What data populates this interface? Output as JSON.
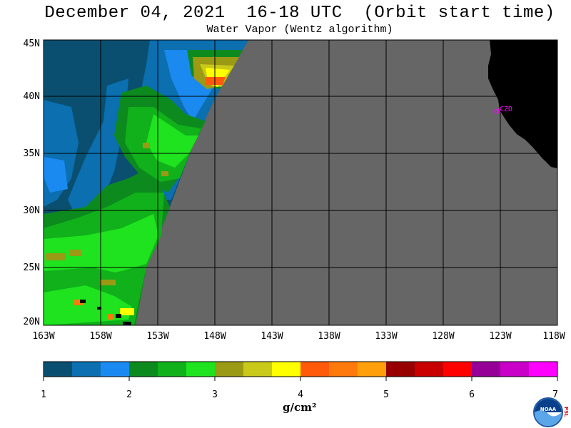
{
  "title": "December 04, 2021  16-18 UTC  (Orbit start time)",
  "subtitle": "Water Vapor (Wentz algorithm)",
  "lat_labels": [
    "45N",
    "40N",
    "35N",
    "30N",
    "25N",
    "20N"
  ],
  "lon_labels": [
    "163W",
    "158W",
    "153W",
    "148W",
    "143W",
    "138W",
    "133W",
    "128W",
    "123W",
    "118W"
  ],
  "station_label": "CZD",
  "colorbar": {
    "colors": [
      "#0a4f70",
      "#0b6fb0",
      "#1a8af0",
      "#0d8a1e",
      "#10b11a",
      "#1ee31e",
      "#9a9a14",
      "#c9c91a",
      "#ffff00",
      "#ff5a0a",
      "#ff7a0a",
      "#ffa00a",
      "#960000",
      "#c80000",
      "#ff0000",
      "#960096",
      "#c800c8",
      "#ff00ff"
    ],
    "tick_labels": [
      "1",
      "2",
      "3",
      "4",
      "5",
      "6",
      "7"
    ],
    "units": "g/cm²"
  },
  "logo_text": "NOAA",
  "logo_side_text": "PSL",
  "no_data_color": "#666666",
  "land_color": "#000000"
}
